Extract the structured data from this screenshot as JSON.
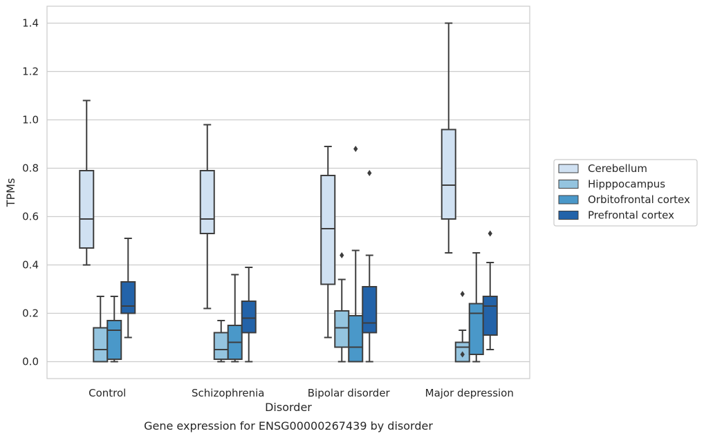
{
  "chart_data": {
    "type": "boxplot",
    "title": "",
    "caption": "Gene expression for ENSG00000267439 by disorder",
    "xlabel": "Disorder",
    "ylabel": "TPMs",
    "ylim": [
      -0.07,
      1.47
    ],
    "yticks": [
      0.0,
      0.2,
      0.4,
      0.6,
      0.8,
      1.0,
      1.2,
      1.4
    ],
    "ytick_labels": [
      "0.0",
      "0.2",
      "0.4",
      "0.6",
      "0.8",
      "1.0",
      "1.2",
      "1.4"
    ],
    "grid": true,
    "legend_position": "right",
    "categories": [
      "Control",
      "Schizophrenia",
      "Bipolar disorder",
      "Major depression"
    ],
    "series": [
      {
        "name": "Cerebellum",
        "color": "#d0e1f2",
        "boxes": [
          {
            "whisker_low": 0.4,
            "q1": 0.47,
            "median": 0.59,
            "q3": 0.79,
            "whisker_high": 1.08,
            "outliers": []
          },
          {
            "whisker_low": 0.22,
            "q1": 0.53,
            "median": 0.59,
            "q3": 0.79,
            "whisker_high": 0.98,
            "outliers": []
          },
          {
            "whisker_low": 0.1,
            "q1": 0.32,
            "median": 0.55,
            "q3": 0.77,
            "whisker_high": 0.89,
            "outliers": []
          },
          {
            "whisker_low": 0.45,
            "q1": 0.59,
            "median": 0.73,
            "q3": 0.96,
            "whisker_high": 1.4,
            "outliers": []
          }
        ]
      },
      {
        "name": "Hipppocampus",
        "color": "#94c4df",
        "boxes": [
          {
            "whisker_low": 0.0,
            "q1": 0.0,
            "median": 0.05,
            "q3": 0.14,
            "whisker_high": 0.27,
            "outliers": []
          },
          {
            "whisker_low": 0.0,
            "q1": 0.01,
            "median": 0.05,
            "q3": 0.12,
            "whisker_high": 0.17,
            "outliers": []
          },
          {
            "whisker_low": 0.0,
            "q1": 0.06,
            "median": 0.14,
            "q3": 0.21,
            "whisker_high": 0.34,
            "outliers": [
              0.44
            ]
          },
          {
            "whisker_low": 0.0,
            "q1": 0.0,
            "median": 0.06,
            "q3": 0.08,
            "whisker_high": 0.13,
            "outliers": [
              0.03,
              0.28
            ]
          }
        ]
      },
      {
        "name": "Orbitofrontal cortex",
        "color": "#4a98c9",
        "boxes": [
          {
            "whisker_low": 0.0,
            "q1": 0.01,
            "median": 0.13,
            "q3": 0.17,
            "whisker_high": 0.27,
            "outliers": []
          },
          {
            "whisker_low": 0.0,
            "q1": 0.01,
            "median": 0.08,
            "q3": 0.15,
            "whisker_high": 0.36,
            "outliers": []
          },
          {
            "whisker_low": 0.0,
            "q1": 0.0,
            "median": 0.06,
            "q3": 0.19,
            "whisker_high": 0.46,
            "outliers": [
              0.88
            ]
          },
          {
            "whisker_low": 0.0,
            "q1": 0.03,
            "median": 0.2,
            "q3": 0.24,
            "whisker_high": 0.45,
            "outliers": []
          }
        ]
      },
      {
        "name": "Prefrontal cortex",
        "color": "#2363a9",
        "boxes": [
          {
            "whisker_low": 0.1,
            "q1": 0.2,
            "median": 0.23,
            "q3": 0.33,
            "whisker_high": 0.51,
            "outliers": []
          },
          {
            "whisker_low": 0.0,
            "q1": 0.12,
            "median": 0.18,
            "q3": 0.25,
            "whisker_high": 0.39,
            "outliers": []
          },
          {
            "whisker_low": 0.0,
            "q1": 0.12,
            "median": 0.16,
            "q3": 0.31,
            "whisker_high": 0.44,
            "outliers": [
              0.78
            ]
          },
          {
            "whisker_low": 0.05,
            "q1": 0.11,
            "median": 0.23,
            "q3": 0.27,
            "whisker_high": 0.41,
            "outliers": [
              0.53
            ]
          }
        ]
      }
    ]
  }
}
